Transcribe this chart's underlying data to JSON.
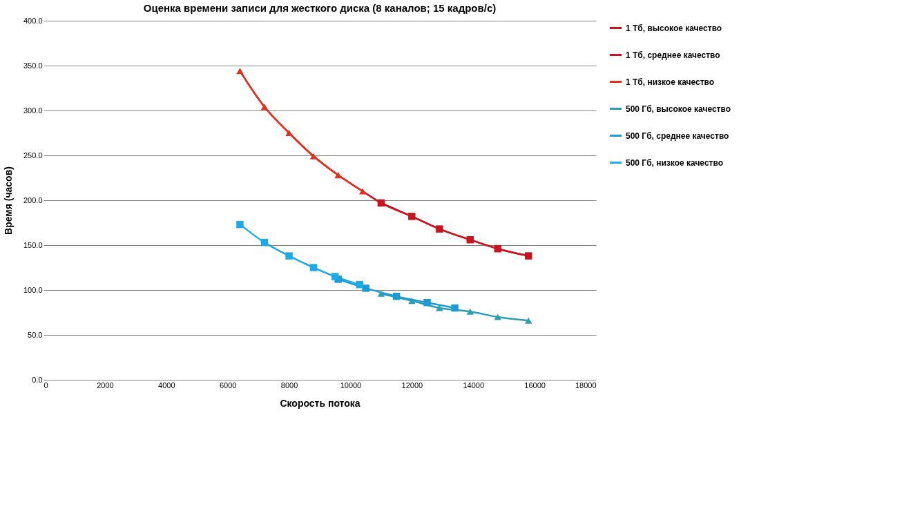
{
  "chart_data": {
    "type": "line",
    "title": "Оценка времени записи для жесткого диска (8 каналов; 15 кадров/с)",
    "xlabel": "Скорость потока",
    "ylabel": "Время (часов)",
    "xlim": [
      0,
      18000
    ],
    "xticks": [
      0,
      2000,
      4000,
      6000,
      8000,
      10000,
      12000,
      14000,
      16000,
      18000
    ],
    "ylim": [
      0,
      400
    ],
    "yticks": [
      {
        "value": 0,
        "label": "0.0"
      },
      {
        "value": 50,
        "label": "50.0"
      },
      {
        "value": 100,
        "label": "100.0"
      },
      {
        "value": 150,
        "label": "150.0"
      },
      {
        "value": 200,
        "label": "200.0"
      },
      {
        "value": 250,
        "label": "250.0"
      },
      {
        "value": 300,
        "label": "300.0"
      },
      {
        "value": 350,
        "label": "350.0"
      },
      {
        "value": 400,
        "label": "400.0"
      }
    ],
    "grid": "y",
    "legend": "right",
    "line_style": "solid",
    "series": [
      {
        "name": "1 Тб, высокое качество",
        "color": "#c8141e",
        "marker": "square",
        "x": [
          11000,
          12000,
          12900,
          13900,
          14800,
          15800
        ],
        "values": [
          197,
          182,
          168,
          156,
          146,
          138
        ]
      },
      {
        "name": "1 Тб, среднее качество",
        "color": "#c8141e",
        "marker": "none",
        "x": [
          6400,
          7200,
          8000,
          8800,
          9600,
          10400,
          11000,
          12000,
          12900,
          13900,
          14800,
          15800
        ],
        "values": [
          344,
          304,
          275,
          249,
          228,
          210,
          197,
          182,
          168,
          156,
          146,
          138
        ]
      },
      {
        "name": "1 Тб, низкое качество",
        "color": "#e2301e",
        "marker": "triangle",
        "x": [
          6400,
          7200,
          8000,
          8800,
          9600,
          10400
        ],
        "values": [
          344,
          304,
          275,
          249,
          228,
          210
        ]
      },
      {
        "name": "500 Гб, высокое качество",
        "color": "#2a9fb0",
        "marker": "triangle",
        "x": [
          11000,
          12000,
          12900,
          13900,
          14800,
          15800
        ],
        "values": [
          96,
          88,
          80,
          76,
          70,
          66
        ]
      },
      {
        "name": "500 Гб, среднее качество",
        "color": "#1e9ad6",
        "marker": "square",
        "x": [
          9600,
          10500,
          11500,
          12500,
          13400
        ],
        "values": [
          112,
          102,
          93,
          86,
          80
        ]
      },
      {
        "name": "500 Гб, низкое качество",
        "color": "#1eaae6",
        "marker": "square",
        "x": [
          6400,
          7200,
          8000,
          8800,
          9500,
          10300
        ],
        "values": [
          173,
          153,
          138,
          125,
          115,
          106
        ]
      }
    ]
  }
}
